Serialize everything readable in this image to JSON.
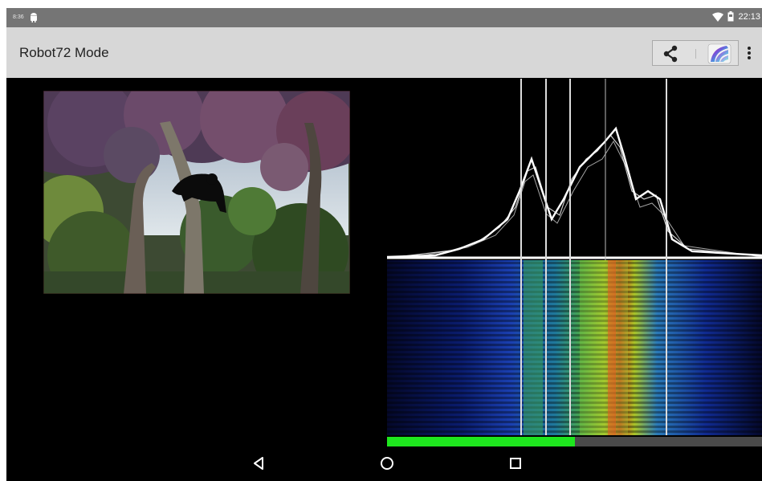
{
  "status_bar": {
    "left_text": "8:36",
    "time": "22:13",
    "icons": [
      "android-icon",
      "wifi-icon",
      "battery-icon"
    ]
  },
  "app_bar": {
    "title": "Robot72 Mode",
    "actions": [
      "share-icon",
      "app-logo-icon",
      "overflow-menu-icon"
    ]
  },
  "main": {
    "received_image": "cat in tree photo",
    "spectrum": {
      "marker_count": 5
    },
    "decode_progress": 0.5
  },
  "nav_bar": {
    "buttons": [
      "back-icon",
      "home-icon",
      "recents-icon"
    ]
  },
  "colors": {
    "status_bar": "#757575",
    "app_bar": "#d7d7d7",
    "progress": "#1ee61e",
    "background": "#000000"
  }
}
